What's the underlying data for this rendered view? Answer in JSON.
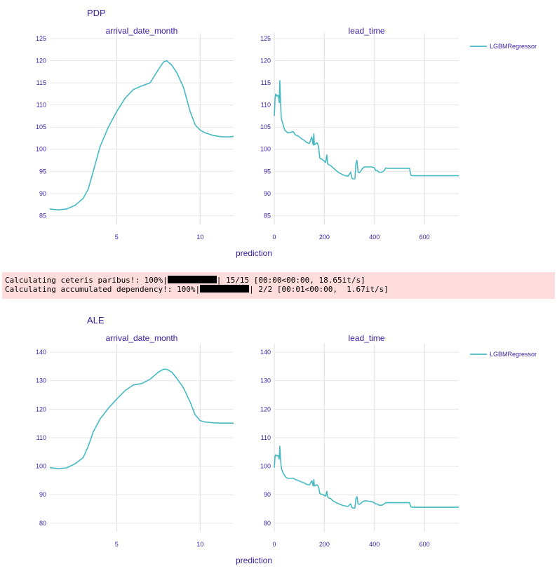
{
  "colors": {
    "line": "#46bac2",
    "text": "#371ea3",
    "grid": "#e6e6e6",
    "log_bg": "#ffdddd"
  },
  "log": {
    "line1": {
      "prefix": "Calculating ceteris paribus!: 100%|",
      "suffix": "| 15/15 [00:00<00:00, 18.65it/s]"
    },
    "line2": {
      "prefix": "Calculating accumulated dependency!: 100%|",
      "suffix": "| 2/2 [00:01<00:00,  1.67it/s]"
    }
  },
  "chart_data": [
    {
      "type": "line",
      "title": "PDP",
      "xlabel": "prediction",
      "legend": {
        "entries": [
          "LGBMRegressor"
        ],
        "placement": "top-right"
      },
      "grid": true,
      "panels": [
        {
          "subtitle": "arrival_date_month",
          "xlim": [
            1,
            12
          ],
          "ylim": [
            83,
            125
          ],
          "xticks": [
            5,
            10
          ],
          "yticks": [
            85,
            90,
            95,
            100,
            105,
            110,
            115,
            120,
            125
          ],
          "series": [
            {
              "name": "LGBMRegressor",
              "x": [
                1.0,
                1.5,
                2.0,
                2.5,
                3.0,
                3.3,
                3.6,
                4.0,
                4.5,
                5.0,
                5.5,
                6.0,
                6.5,
                7.0,
                7.5,
                7.8,
                8.0,
                8.3,
                8.6,
                9.0,
                9.4,
                9.7,
                10.0,
                10.3,
                10.8,
                11.3,
                11.8,
                12.0
              ],
              "y": [
                86.5,
                86.3,
                86.5,
                87.3,
                88.9,
                91.0,
                95.0,
                100.5,
                105.0,
                108.5,
                111.5,
                113.5,
                114.3,
                115.0,
                118.0,
                119.7,
                120.0,
                119.0,
                117.3,
                114.0,
                108.5,
                105.5,
                104.3,
                103.7,
                103.1,
                102.8,
                102.8,
                102.9
              ]
            }
          ]
        },
        {
          "subtitle": "lead_time",
          "xlim": [
            0,
            737
          ],
          "ylim": [
            83,
            125
          ],
          "xticks": [
            0,
            200,
            400,
            600
          ],
          "yticks": [
            85,
            90,
            95,
            100,
            105,
            110,
            115,
            120,
            125
          ],
          "series": [
            {
              "name": "LGBMRegressor",
              "x": [
                0,
                3,
                6,
                10,
                15,
                18,
                20,
                22,
                25,
                28,
                30,
                33,
                38,
                42,
                48,
                55,
                65,
                75,
                85,
                95,
                100,
                110,
                120,
                130,
                140,
                150,
                155,
                158,
                160,
                165,
                170,
                175,
                178,
                182,
                185,
                190,
                195,
                200,
                205,
                210,
                213,
                218,
                225,
                235,
                245,
                255,
                265,
                275,
                285,
                295,
                305,
                310,
                315,
                318,
                322,
                326,
                330,
                335,
                340,
                345,
                350,
                352,
                355,
                360,
                370,
                380,
                390,
                400,
                405,
                410,
                418,
                425,
                430,
                440,
                445,
                450,
                460,
                470,
                480,
                490,
                500,
                510,
                520,
                530,
                540,
                545,
                550,
                580,
                620,
                660,
                700,
                737
              ],
              "y": [
                107.5,
                111.5,
                112.5,
                112.0,
                112.2,
                111.5,
                110.5,
                115.5,
                110.5,
                107.0,
                106.5,
                106.0,
                105.0,
                104.3,
                104.0,
                103.7,
                103.8,
                104.0,
                103.2,
                103.0,
                102.8,
                102.3,
                102.0,
                101.5,
                101.3,
                102.8,
                101.0,
                103.5,
                101.0,
                101.2,
                101.5,
                101.0,
                100.0,
                98.0,
                97.8,
                97.8,
                97.5,
                97.3,
                97.0,
                98.7,
                96.7,
                96.5,
                96.3,
                95.8,
                95.3,
                94.8,
                94.5,
                94.2,
                94.0,
                93.9,
                94.8,
                93.5,
                93.3,
                93.3,
                93.3,
                96.7,
                97.5,
                94.8,
                94.7,
                95.0,
                95.5,
                95.5,
                95.8,
                96.0,
                96.0,
                96.0,
                96.0,
                95.8,
                95.2,
                95.3,
                94.8,
                94.8,
                94.8,
                95.2,
                95.8,
                95.7,
                95.7,
                95.7,
                95.7,
                95.7,
                95.7,
                95.7,
                95.7,
                95.7,
                95.7,
                94.2,
                94.0,
                94.0,
                94.0,
                94.0,
                94.0,
                94.0
              ]
            }
          ]
        }
      ]
    },
    {
      "type": "line",
      "title": "ALE",
      "xlabel": "prediction",
      "legend": {
        "entries": [
          "LGBMRegressor"
        ],
        "placement": "top-right"
      },
      "grid": true,
      "panels": [
        {
          "subtitle": "arrival_date_month",
          "xlim": [
            1,
            12
          ],
          "ylim": [
            77,
            141
          ],
          "xticks": [
            5,
            10
          ],
          "yticks": [
            80,
            90,
            100,
            110,
            120,
            130,
            140
          ],
          "series": [
            {
              "name": "LGBMRegressor",
              "x": [
                1.0,
                1.5,
                2.0,
                2.5,
                3.0,
                3.3,
                3.6,
                4.0,
                4.5,
                5.0,
                5.5,
                6.0,
                6.5,
                7.0,
                7.5,
                7.8,
                8.0,
                8.3,
                8.6,
                9.0,
                9.4,
                9.7,
                10.0,
                10.3,
                10.8,
                11.3,
                11.8,
                12.0
              ],
              "y": [
                99.5,
                99.1,
                99.4,
                100.8,
                103.0,
                107.0,
                112.0,
                116.5,
                120.3,
                123.5,
                126.5,
                128.5,
                129.0,
                130.5,
                133.0,
                134.0,
                134.0,
                133.0,
                130.8,
                127.5,
                122.5,
                118.0,
                116.0,
                115.5,
                115.2,
                115.1,
                115.1,
                115.1
              ]
            }
          ]
        },
        {
          "subtitle": "lead_time",
          "xlim": [
            0,
            737
          ],
          "ylim": [
            77,
            141
          ],
          "xticks": [
            0,
            200,
            400,
            600
          ],
          "yticks": [
            80,
            90,
            100,
            110,
            120,
            130,
            140
          ],
          "series": [
            {
              "name": "LGBMRegressor",
              "x": [
                0,
                3,
                6,
                10,
                15,
                18,
                20,
                22,
                25,
                28,
                30,
                33,
                38,
                42,
                48,
                55,
                65,
                75,
                85,
                95,
                100,
                110,
                120,
                130,
                140,
                150,
                155,
                158,
                160,
                165,
                170,
                175,
                178,
                182,
                185,
                190,
                195,
                200,
                205,
                210,
                213,
                218,
                225,
                235,
                245,
                255,
                265,
                275,
                285,
                295,
                305,
                310,
                315,
                318,
                322,
                326,
                330,
                335,
                340,
                345,
                350,
                352,
                355,
                360,
                370,
                380,
                390,
                400,
                405,
                410,
                418,
                425,
                430,
                440,
                445,
                450,
                460,
                470,
                480,
                490,
                500,
                510,
                520,
                530,
                540,
                545,
                550,
                580,
                620,
                660,
                700,
                737
              ],
              "y": [
                99.5,
                103.5,
                104.0,
                103.6,
                103.7,
                103.2,
                102.5,
                107.0,
                102.3,
                99.5,
                98.8,
                98.0,
                97.2,
                96.6,
                96.0,
                95.7,
                95.7,
                95.8,
                95.3,
                95.0,
                94.8,
                94.4,
                94.1,
                93.6,
                93.4,
                94.9,
                93.1,
                95.3,
                93.1,
                93.2,
                93.5,
                93.0,
                92.2,
                90.5,
                90.2,
                90.2,
                90.0,
                89.7,
                89.5,
                91.2,
                89.2,
                88.9,
                88.6,
                87.8,
                87.3,
                86.9,
                86.5,
                86.2,
                86.0,
                85.9,
                86.8,
                85.5,
                85.3,
                85.3,
                85.3,
                88.5,
                89.3,
                86.8,
                86.6,
                86.9,
                87.4,
                87.4,
                87.6,
                87.8,
                87.8,
                87.7,
                87.5,
                87.2,
                86.7,
                86.8,
                86.3,
                86.3,
                86.3,
                86.8,
                87.2,
                87.2,
                87.2,
                87.2,
                87.2,
                87.2,
                87.2,
                87.2,
                87.2,
                87.2,
                87.2,
                85.8,
                85.6,
                85.6,
                85.6,
                85.6,
                85.6,
                85.6
              ]
            }
          ]
        }
      ]
    }
  ]
}
